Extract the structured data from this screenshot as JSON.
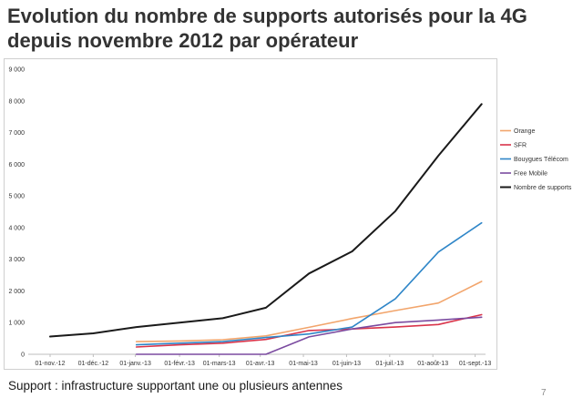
{
  "title": {
    "line1": "Evolution du nombre de supports autorisés pour la 4G",
    "line2": "depuis novembre 2012 par opérateur"
  },
  "footnote": "Support : infrastructure supportant une ou plusieurs antennes",
  "page_number": "7",
  "chart_data": {
    "type": "line",
    "title": "Evolution du nombre de supports autorisés pour la 4G depuis novembre 2012 par opérateur",
    "xlabel": "",
    "ylabel": "",
    "ylim": [
      0,
      9000
    ],
    "y_ticks": [
      0,
      1000,
      2000,
      3000,
      4000,
      5000,
      6000,
      7000,
      8000,
      9000
    ],
    "y_tick_labels": [
      "0",
      "1 000",
      "2 000",
      "3 000",
      "4 000",
      "5 000",
      "6 000",
      "7 000",
      "8 000",
      "9 000"
    ],
    "categories": [
      "01-nov.-12",
      "01-déc.-12",
      "01-janv.-13",
      "01-févr.-13",
      "01-mars-13",
      "01-avr.-13",
      "01-mai-13",
      "01-juin-13",
      "01-juil.-13",
      "01-août-13",
      "01-sept.-13"
    ],
    "x_numeric": [
      0,
      1,
      1.976,
      3,
      3.92,
      4.87,
      5.87,
      6.87,
      7.87,
      8.87,
      9.85
    ],
    "legend_position": "right",
    "series": [
      {
        "name": "Orange",
        "color": "#f2a56c",
        "points": [
          [
            2,
            400
          ],
          [
            3,
            420
          ],
          [
            4,
            460
          ],
          [
            5,
            580
          ],
          [
            6,
            850
          ],
          [
            7,
            1130
          ],
          [
            8,
            1380
          ],
          [
            9,
            1620
          ],
          [
            10,
            2300
          ]
        ]
      },
      {
        "name": "SFR",
        "color": "#d9344a",
        "points": [
          [
            2,
            230
          ],
          [
            3,
            300
          ],
          [
            4,
            350
          ],
          [
            5,
            470
          ],
          [
            6,
            750
          ],
          [
            7,
            800
          ],
          [
            8,
            860
          ],
          [
            9,
            940
          ],
          [
            10,
            1250
          ]
        ]
      },
      {
        "name": "Bouygues Télécom",
        "color": "#2f86c8",
        "points": [
          [
            2,
            300
          ],
          [
            3,
            350
          ],
          [
            4,
            400
          ],
          [
            5,
            530
          ],
          [
            6,
            640
          ],
          [
            7,
            860
          ],
          [
            8,
            1750
          ],
          [
            9,
            3230
          ],
          [
            10,
            4150
          ]
        ]
      },
      {
        "name": "Free Mobile",
        "color": "#7b4ba0",
        "points": [
          [
            2,
            0
          ],
          [
            3,
            0
          ],
          [
            4,
            0
          ],
          [
            5,
            0
          ],
          [
            6,
            550
          ],
          [
            7,
            800
          ],
          [
            8,
            1000
          ],
          [
            9,
            1080
          ],
          [
            10,
            1170
          ]
        ]
      },
      {
        "name": "Nombre de supports",
        "color": "#1a1a1a",
        "points": [
          [
            0,
            560
          ],
          [
            1,
            660
          ],
          [
            2,
            860
          ],
          [
            3,
            1000
          ],
          [
            4,
            1140
          ],
          [
            5,
            1470
          ],
          [
            6,
            2550
          ],
          [
            7,
            3250
          ],
          [
            8,
            4520
          ],
          [
            9,
            6270
          ],
          [
            10,
            7900
          ]
        ]
      }
    ]
  }
}
